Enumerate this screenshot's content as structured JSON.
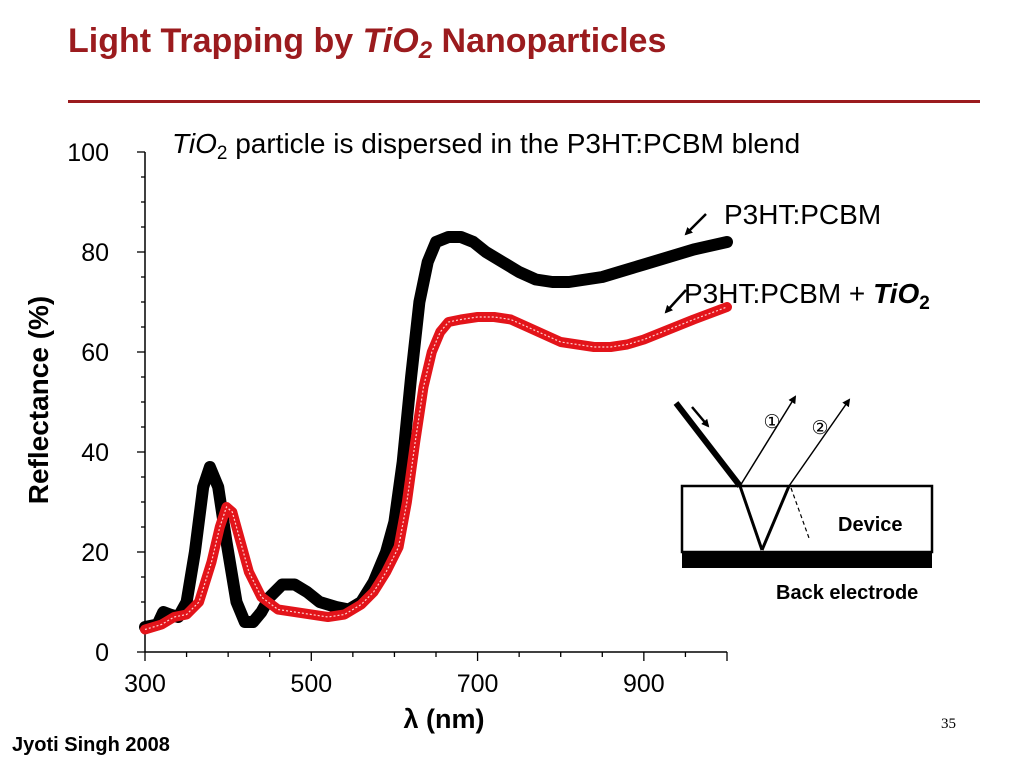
{
  "slide": {
    "title_prefix": "Light Trapping by ",
    "title_formula_base": "TiO",
    "title_formula_sub": "2",
    "title_suffix": " Nanoparticles",
    "subtitle_formula_base": "TiO",
    "subtitle_formula_sub": "2",
    "subtitle_text": " particle is dispersed in the P3HT:PCBM blend",
    "footer_author": "Jyoti Singh 2008",
    "page_number": "35",
    "title_color": "#9b1b1e"
  },
  "chart_data": {
    "type": "line",
    "title": "",
    "xlabel": "λ (nm)",
    "ylabel": "Reflectance (%)",
    "xlim": [
      300,
      1000
    ],
    "ylim": [
      0,
      100
    ],
    "x_ticks": [
      300,
      500,
      700,
      900
    ],
    "y_ticks": [
      0,
      20,
      40,
      60,
      80,
      100
    ],
    "grid": false,
    "series": [
      {
        "name": "P3HT:PCBM",
        "label_parts": [
          "P3HT:PCBM"
        ],
        "color": "#000000",
        "points": [
          [
            300,
            5
          ],
          [
            315,
            5.5
          ],
          [
            322,
            8
          ],
          [
            330,
            7.5
          ],
          [
            340,
            7
          ],
          [
            350,
            10
          ],
          [
            360,
            20
          ],
          [
            370,
            33
          ],
          [
            378,
            37
          ],
          [
            388,
            33
          ],
          [
            398,
            22
          ],
          [
            410,
            10
          ],
          [
            420,
            6
          ],
          [
            430,
            6
          ],
          [
            440,
            8
          ],
          [
            450,
            11
          ],
          [
            465,
            13.5
          ],
          [
            480,
            13.5
          ],
          [
            495,
            12
          ],
          [
            510,
            10
          ],
          [
            530,
            9
          ],
          [
            545,
            8.5
          ],
          [
            560,
            10
          ],
          [
            575,
            14
          ],
          [
            590,
            20
          ],
          [
            600,
            26
          ],
          [
            610,
            38
          ],
          [
            620,
            55
          ],
          [
            630,
            70
          ],
          [
            640,
            78
          ],
          [
            650,
            82
          ],
          [
            665,
            83
          ],
          [
            680,
            83
          ],
          [
            695,
            82
          ],
          [
            710,
            80
          ],
          [
            730,
            78
          ],
          [
            750,
            76
          ],
          [
            770,
            74.5
          ],
          [
            790,
            74
          ],
          [
            810,
            74
          ],
          [
            830,
            74.5
          ],
          [
            850,
            75
          ],
          [
            870,
            76
          ],
          [
            900,
            77.5
          ],
          [
            930,
            79
          ],
          [
            960,
            80.5
          ],
          [
            1000,
            82
          ]
        ]
      },
      {
        "name": "P3HT:PCBM + TiO2",
        "label_parts": [
          "P3HT:PCBM + ",
          "TiO",
          "2"
        ],
        "color": "#e3141a",
        "points": [
          [
            300,
            4.5
          ],
          [
            320,
            5.5
          ],
          [
            335,
            7
          ],
          [
            350,
            7.5
          ],
          [
            365,
            10
          ],
          [
            380,
            18
          ],
          [
            390,
            25
          ],
          [
            398,
            29
          ],
          [
            405,
            28
          ],
          [
            415,
            22
          ],
          [
            425,
            16
          ],
          [
            440,
            11
          ],
          [
            460,
            8.5
          ],
          [
            480,
            8
          ],
          [
            500,
            7.5
          ],
          [
            520,
            7
          ],
          [
            540,
            7.5
          ],
          [
            560,
            9.5
          ],
          [
            575,
            12
          ],
          [
            590,
            16
          ],
          [
            605,
            21
          ],
          [
            615,
            30
          ],
          [
            625,
            42
          ],
          [
            635,
            53
          ],
          [
            645,
            60
          ],
          [
            655,
            64
          ],
          [
            665,
            66
          ],
          [
            680,
            66.5
          ],
          [
            700,
            67
          ],
          [
            720,
            67
          ],
          [
            740,
            66.5
          ],
          [
            760,
            65
          ],
          [
            780,
            63.5
          ],
          [
            800,
            62
          ],
          [
            820,
            61.5
          ],
          [
            840,
            61
          ],
          [
            860,
            61
          ],
          [
            880,
            61.5
          ],
          [
            900,
            62.5
          ],
          [
            930,
            64.5
          ],
          [
            960,
            66.5
          ],
          [
            1000,
            69
          ]
        ]
      }
    ],
    "inset": {
      "ray1_label": "①",
      "ray2_label": "②",
      "device_label": "Device",
      "electrode_label": "Back electrode"
    }
  }
}
